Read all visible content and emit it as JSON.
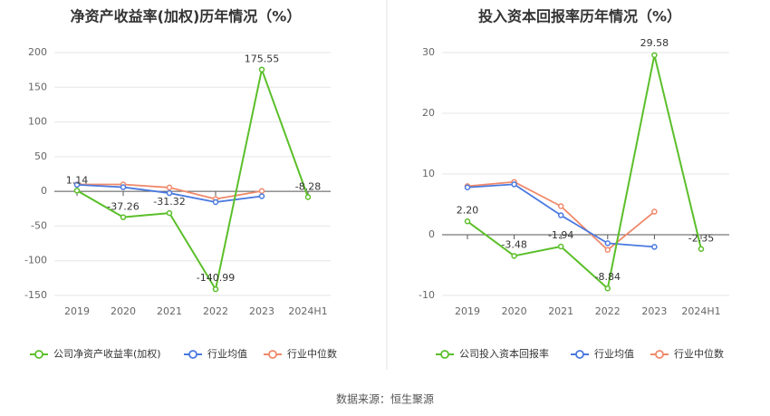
{
  "footer": {
    "source": "数据来源：恒生聚源"
  },
  "colors": {
    "company": "#5bbf2a",
    "industry_avg": "#4a79e0",
    "industry_median": "#f0896a",
    "grid": "#e6e6e6",
    "divider": "#e0e0e0"
  },
  "chart_data": [
    {
      "type": "line",
      "title": "净资产收益率(加权)历年情况（%）",
      "categories": [
        "2019",
        "2020",
        "2021",
        "2022",
        "2023",
        "2024H1"
      ],
      "ylim": [
        -150,
        200
      ],
      "yticks": [
        200,
        150,
        100,
        50,
        0,
        -50,
        -100,
        -150
      ],
      "grid": true,
      "legend_position": "bottom",
      "series": [
        {
          "name": "公司净资产收益率(加权)",
          "values": [
            1.14,
            -37.26,
            -31.32,
            -140.99,
            175.55,
            -8.28
          ],
          "labels": [
            "1.14",
            "-37.26",
            "-31.32",
            "-140.99",
            "175.55",
            "-8.28"
          ]
        },
        {
          "name": "行业均值",
          "values": [
            9.5,
            6.0,
            -2.5,
            -15.5,
            -7.0,
            null
          ]
        },
        {
          "name": "行业中位数",
          "values": [
            10.0,
            10.0,
            5.5,
            -11.0,
            0.5,
            null
          ]
        }
      ]
    },
    {
      "type": "line",
      "title": "投入资本回报率历年情况（%）",
      "categories": [
        "2019",
        "2020",
        "2021",
        "2022",
        "2023",
        "2024H1"
      ],
      "ylim": [
        -10,
        30
      ],
      "yticks": [
        30,
        20,
        10,
        0,
        -10
      ],
      "grid": true,
      "legend_position": "bottom",
      "series": [
        {
          "name": "公司投入资本回报率",
          "values": [
            2.2,
            -3.48,
            -1.94,
            -8.84,
            29.58,
            -2.35
          ],
          "labels": [
            "2.20",
            "-3.48",
            "-1.94",
            "-8.84",
            "29.58",
            "-2.35"
          ]
        },
        {
          "name": "行业均值",
          "values": [
            7.8,
            8.3,
            3.2,
            -1.4,
            -2.0,
            null
          ]
        },
        {
          "name": "行业中位数",
          "values": [
            8.0,
            8.7,
            4.7,
            -2.5,
            3.8,
            null
          ]
        }
      ]
    }
  ]
}
